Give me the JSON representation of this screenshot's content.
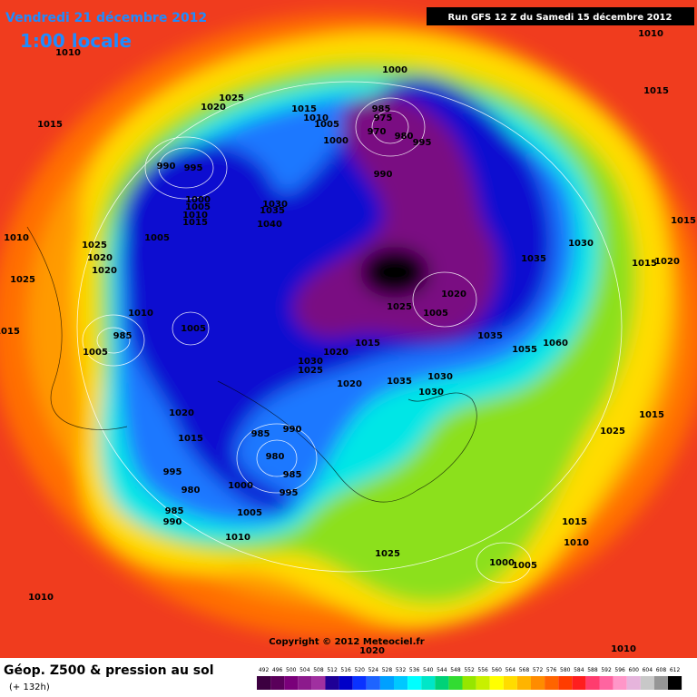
{
  "header": {
    "date": "Vendredi 21 décembre 2012",
    "time": "1:00 locale",
    "run": "Run GFS 12 Z du Samedi 15 décembre 2012"
  },
  "copyright": "Copyright © 2012 Meteociel.fr",
  "footer": {
    "title": "Géop. Z500 & pression au sol",
    "lead": "(+ 132h)"
  },
  "scale": {
    "labels": [
      492,
      496,
      500,
      504,
      508,
      512,
      516,
      520,
      524,
      528,
      532,
      536,
      540,
      544,
      548,
      552,
      556,
      560,
      564,
      568,
      572,
      576,
      580,
      584,
      588,
      592,
      596,
      600,
      604,
      608,
      612
    ],
    "colors": [
      "#3c0040",
      "#5a005a",
      "#7a007a",
      "#8c1a8c",
      "#a030a0",
      "#1e0096",
      "#0000c8",
      "#0a32ff",
      "#1e64ff",
      "#00a0ff",
      "#00c8ff",
      "#00ffff",
      "#00e6c8",
      "#00d278",
      "#32dc32",
      "#96e600",
      "#c8f000",
      "#ffff00",
      "#ffdc00",
      "#ffb400",
      "#ff8c00",
      "#ff6400",
      "#ff3c00",
      "#ff1e1e",
      "#ff3c6e",
      "#ff64a0",
      "#ff96c8",
      "#e6b4dc",
      "#c8c8c8",
      "#969696",
      "#000000"
    ]
  },
  "isobars": [
    1010,
    1015,
    1025,
    1020,
    1015,
    1010,
    1005,
    1000,
    985,
    975,
    970,
    980,
    995,
    1000,
    990,
    990,
    995,
    1000,
    1005,
    1010,
    1015,
    1030,
    1035,
    1040,
    1005,
    1010,
    1025,
    1020,
    1020,
    1025,
    1015,
    1010,
    1005,
    985,
    1005,
    1025,
    1005,
    1020,
    1035,
    1020,
    1015,
    1030,
    1025,
    1020,
    1035,
    1030,
    1030,
    1035,
    1030,
    1015,
    1020,
    1060,
    1055,
    1015,
    1010,
    1015,
    1020,
    1015,
    985,
    990,
    980,
    985,
    995,
    1000,
    995,
    980,
    985,
    990,
    1005,
    1010,
    1025,
    1015,
    1015,
    1010,
    1000,
    1005,
    1025,
    1010,
    1010,
    1020
  ]
}
